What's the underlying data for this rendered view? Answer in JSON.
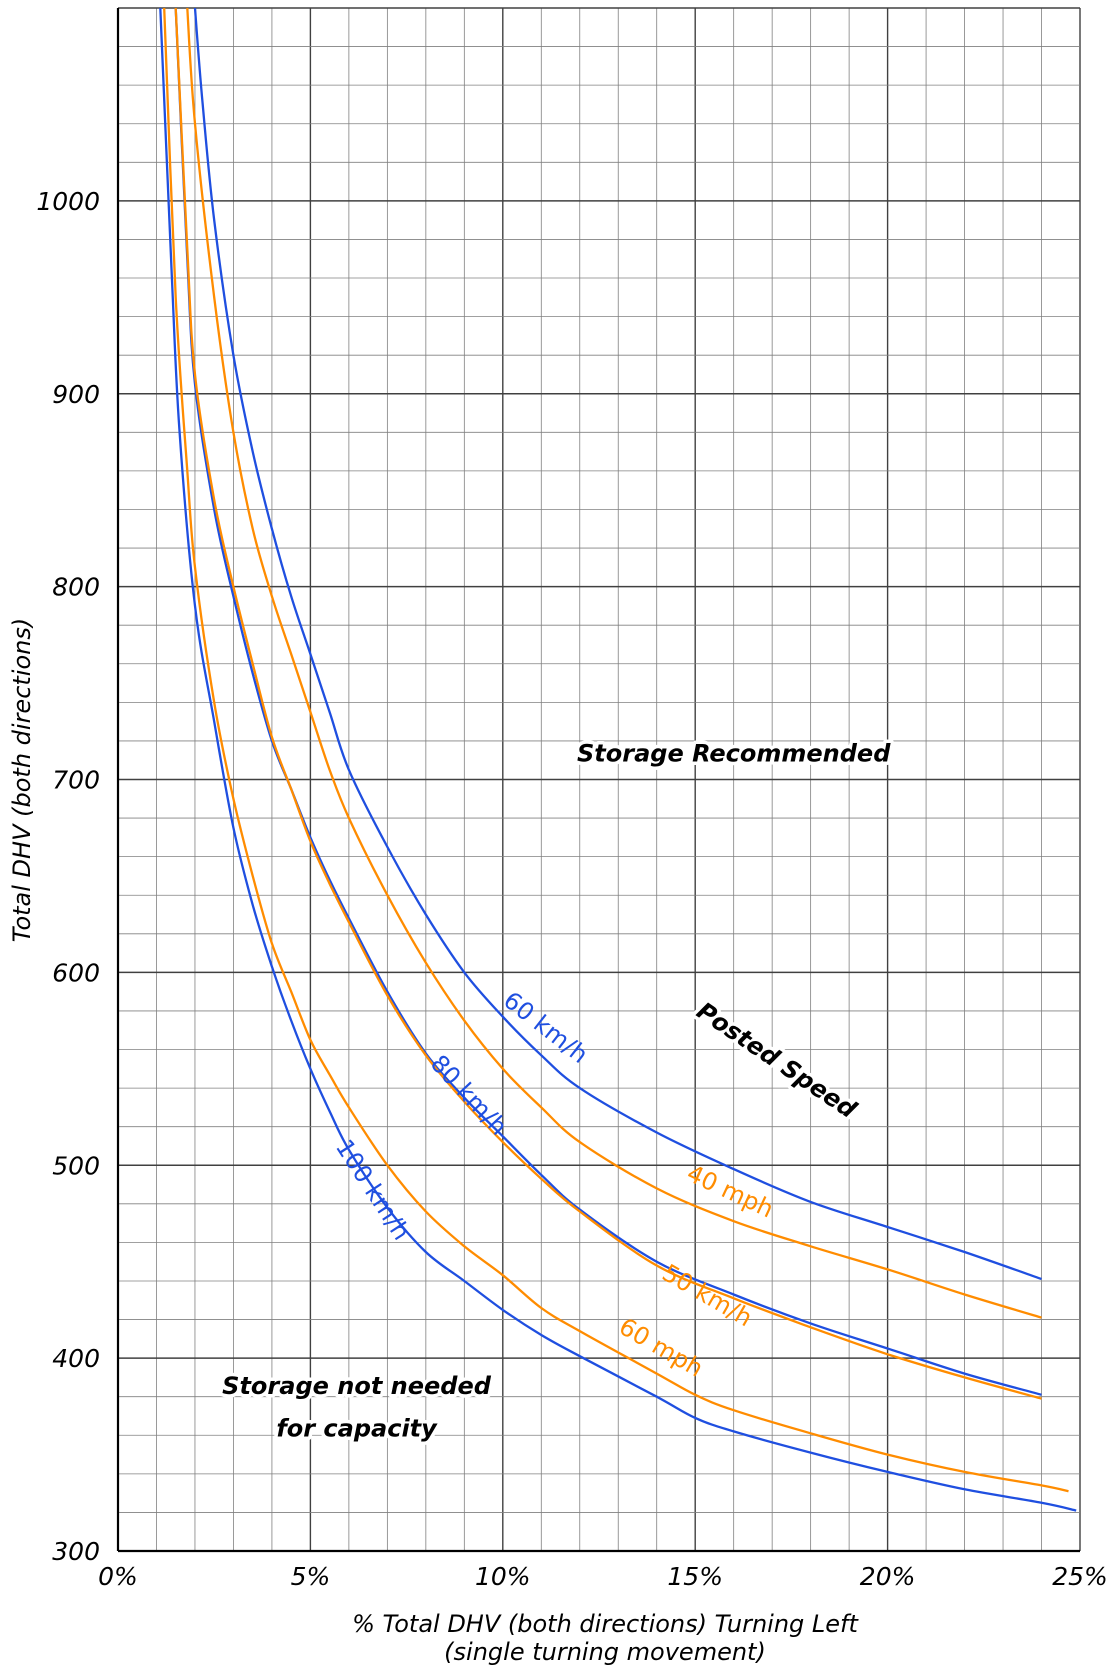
{
  "chart_data": {
    "type": "line",
    "title": "",
    "xlabel": "% Total DHV (both directions) Turning Left",
    "xlabel_sub": "(single turning movement)",
    "ylabel": "Total DHV (both directions)",
    "xlim": [
      0,
      25
    ],
    "ylim": [
      300,
      1100
    ],
    "x_ticks": [
      {
        "value": 0,
        "label": "0%"
      },
      {
        "value": 5,
        "label": "5%"
      },
      {
        "value": 10,
        "label": "10%"
      },
      {
        "value": 15,
        "label": "15%"
      },
      {
        "value": 20,
        "label": "20%"
      },
      {
        "value": 25,
        "label": "25%"
      }
    ],
    "y_ticks": [
      {
        "value": 300,
        "label": "300"
      },
      {
        "value": 400,
        "label": "400"
      },
      {
        "value": 500,
        "label": "500"
      },
      {
        "value": 600,
        "label": "600"
      },
      {
        "value": 700,
        "label": "700"
      },
      {
        "value": 800,
        "label": "800"
      },
      {
        "value": 900,
        "label": "900"
      },
      {
        "value": 1000,
        "label": "1000"
      }
    ],
    "grid": true,
    "grid_minor_x": 1,
    "grid_minor_y": 20,
    "colors": {
      "metric": "#1f4fe0",
      "imperial": "#ff8c00",
      "grid": "#808080",
      "grid_major": "#404040"
    },
    "series": [
      {
        "name": "60 km/h",
        "color": "#1f4fe0",
        "x": [
          2.0,
          2.2,
          2.5,
          3.0,
          3.5,
          4.0,
          4.5,
          5.0,
          5.5,
          6.0,
          7.0,
          8.0,
          9.0,
          10.0,
          11.0,
          12.0,
          14.0,
          16.0,
          18.0,
          20.0,
          22.0,
          24.0
        ],
        "y": [
          1100,
          1050,
          990,
          920,
          870,
          830,
          795,
          765,
          735,
          705,
          665,
          630,
          600,
          577,
          557,
          540,
          517,
          498,
          481,
          468,
          455,
          441
        ]
      },
      {
        "name": "40 mph",
        "color": "#ff8c00",
        "x": [
          1.8,
          2.0,
          2.5,
          3.0,
          3.5,
          4.0,
          4.5,
          5.0,
          5.5,
          6.0,
          7.0,
          8.0,
          9.0,
          10.0,
          11.0,
          12.0,
          14.0,
          16.0,
          18.0,
          20.0,
          22.0,
          24.0
        ],
        "y": [
          1100,
          1040,
          950,
          880,
          830,
          795,
          765,
          735,
          705,
          680,
          640,
          605,
          575,
          550,
          530,
          512,
          488,
          471,
          458,
          446,
          433,
          421
        ]
      },
      {
        "name": "80 km/h",
        "color": "#1f4fe0",
        "x": [
          1.5,
          1.8,
          2.0,
          2.5,
          3.0,
          3.5,
          4.0,
          4.5,
          5.0,
          5.5,
          6.0,
          7.0,
          8.0,
          9.0,
          10.0,
          11.0,
          12.0,
          14.0,
          16.0,
          18.0,
          20.0,
          22.0,
          24.0
        ],
        "y": [
          1100,
          970,
          905,
          840,
          795,
          755,
          720,
          695,
          670,
          648,
          628,
          590,
          558,
          535,
          515,
          495,
          477,
          450,
          433,
          418,
          405,
          392,
          381
        ]
      },
      {
        "name": "50 km/h",
        "color": "#ff8c00",
        "x": [
          1.5,
          1.8,
          2.0,
          2.5,
          3.0,
          3.5,
          4.0,
          4.5,
          5.0,
          5.5,
          6.0,
          7.0,
          8.0,
          9.0,
          10.0,
          11.0,
          12.0,
          14.0,
          16.0,
          18.0,
          20.0,
          22.0,
          24.0
        ],
        "y": [
          1100,
          975,
          910,
          845,
          800,
          760,
          722,
          695,
          668,
          646,
          626,
          588,
          557,
          533,
          512,
          493,
          476,
          448,
          431,
          416,
          402,
          390,
          379
        ]
      },
      {
        "name": "60 mph",
        "color": "#ff8c00",
        "x": [
          1.2,
          1.5,
          1.8,
          2.0,
          2.5,
          3.0,
          3.5,
          4.0,
          4.5,
          5.0,
          5.5,
          6.0,
          7.0,
          8.0,
          9.0,
          10.0,
          11.0,
          12.0,
          14.0,
          15.0,
          16.0,
          18.0,
          20.0,
          22.0,
          24.0,
          24.7
        ],
        "y": [
          1100,
          950,
          860,
          810,
          740,
          690,
          650,
          615,
          590,
          565,
          547,
          530,
          500,
          476,
          458,
          443,
          426,
          414,
          392,
          381,
          373,
          361,
          350,
          341,
          334,
          331
        ]
      },
      {
        "name": "100 km/h",
        "color": "#1f4fe0",
        "x": [
          1.1,
          1.4,
          1.6,
          2.0,
          2.5,
          3.0,
          3.5,
          4.0,
          4.5,
          5.0,
          5.5,
          6.0,
          7.0,
          8.0,
          9.0,
          10.0,
          11.0,
          12.0,
          14.0,
          15.0,
          16.0,
          18.0,
          20.0,
          22.0,
          24.0,
          24.9
        ],
        "y": [
          1100,
          960,
          880,
          790,
          730,
          675,
          635,
          603,
          575,
          550,
          528,
          508,
          478,
          455,
          440,
          425,
          412,
          401,
          380,
          369,
          362,
          351,
          341,
          332,
          325,
          321
        ]
      }
    ],
    "curve_labels": [
      {
        "text": "60 km/h",
        "series": "60 km/h",
        "x": 11.1,
        "y": 571,
        "angle": 38,
        "color": "#1f4fe0"
      },
      {
        "text": "40 mph",
        "series": "40 mph",
        "x": 15.9,
        "y": 486,
        "angle": 25,
        "color": "#ff8c00"
      },
      {
        "text": "80 km/h",
        "series": "80 km/h",
        "x": 9.1,
        "y": 536,
        "angle": 47,
        "color": "#1f4fe0"
      },
      {
        "text": "50 km/h",
        "series": "50 km/h",
        "x": 15.3,
        "y": 432,
        "angle": 30,
        "color": "#ff8c00"
      },
      {
        "text": "60 mph",
        "series": "60 mph",
        "x": 14.1,
        "y": 405,
        "angle": 30,
        "color": "#ff8c00"
      },
      {
        "text": "100 km/h",
        "series": "100 km/h",
        "x": 6.6,
        "y": 487,
        "angle": 57,
        "color": "#1f4fe0"
      }
    ],
    "annotations": [
      {
        "text": "Storage Recommended",
        "x": 16.0,
        "y": 713,
        "angle": 0
      },
      {
        "text": "Posted Speed",
        "x": 17.1,
        "y": 554,
        "angle": 34
      },
      {
        "text": "Storage not needed",
        "x": 6.2,
        "y": 385,
        "angle": 0
      },
      {
        "text": "for capacity",
        "x": 6.2,
        "y": 363,
        "angle": 0
      }
    ]
  }
}
